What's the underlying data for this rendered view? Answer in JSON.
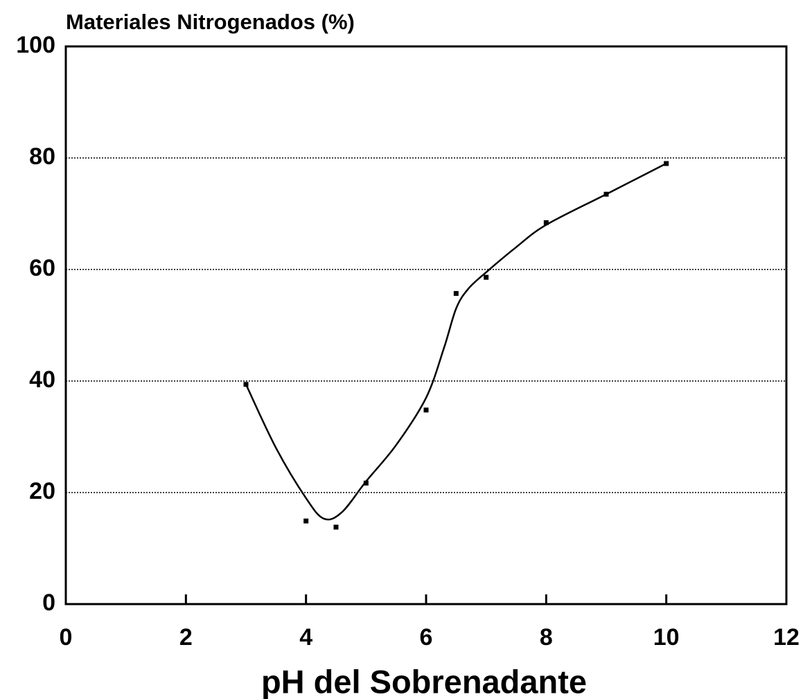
{
  "chart_data": {
    "type": "scatter",
    "title": "Materiales Nitrogenados (%)",
    "x_label": "pH del Sobrenadante",
    "series": [
      {
        "mode": "markers",
        "color": "#000000",
        "x": [
          3,
          4,
          4.5,
          5,
          6,
          6.5,
          7,
          8,
          9,
          10
        ],
        "values": [
          39.4,
          14.9,
          13.8,
          21.7,
          34.8,
          55.7,
          58.6,
          68.4,
          73.5,
          79.0
        ]
      },
      {
        "mode": "line",
        "color": "#000000",
        "x": [
          3,
          3.5,
          4,
          4.3,
          4.6,
          5,
          5.5,
          6,
          6.3,
          6.5,
          6.7,
          7,
          7.5,
          8,
          9,
          10
        ],
        "values": [
          39.4,
          28,
          19,
          15.3,
          16.5,
          22,
          28.5,
          37,
          46,
          53,
          56.5,
          59.5,
          64,
          68,
          73.5,
          79
        ]
      }
    ],
    "xlim": [
      0,
      12
    ],
    "xticks": [
      0,
      2,
      4,
      6,
      8,
      10,
      12
    ],
    "ylim": [
      0,
      100
    ],
    "yticks": [
      0,
      20,
      40,
      60,
      80,
      100
    ],
    "grid": true
  }
}
